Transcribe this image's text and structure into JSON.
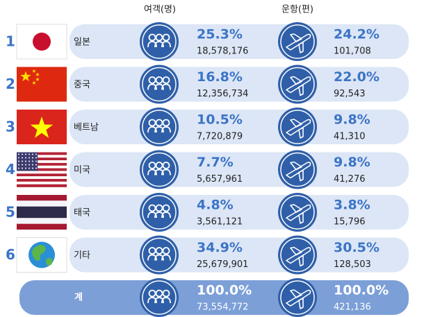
{
  "header": {
    "passengers": "여객(명)",
    "flights": "운항(편)"
  },
  "rows": [
    {
      "rank": "1",
      "country": "일본",
      "passenger_share": "25.3%",
      "passengers": "18,578,176",
      "flight_share": "24.2%",
      "flights": "101,708"
    },
    {
      "rank": "2",
      "country": "중국",
      "passenger_share": "16.8%",
      "passengers": "12,356,734",
      "flight_share": "22.0%",
      "flights": "92,543"
    },
    {
      "rank": "3",
      "country": "베트남",
      "passenger_share": "10.5%",
      "passengers": "7,720,879",
      "flight_share": "9.8%",
      "flights": "41,310"
    },
    {
      "rank": "4",
      "country": "미국",
      "passenger_share": "7.7%",
      "passengers": "5,657,961",
      "flight_share": "9.8%",
      "flights": "41,276"
    },
    {
      "rank": "5",
      "country": "태국",
      "passenger_share": "4.8%",
      "passengers": "3,561,121",
      "flight_share": "3.8%",
      "flights": "15,796"
    },
    {
      "rank": "6",
      "country": "기타",
      "passenger_share": "34.9%",
      "passengers": "25,679,901",
      "flight_share": "30.5%",
      "flights": "128,503"
    }
  ],
  "total": {
    "label": "계",
    "passenger_share": "100.0%",
    "passengers": "73,554,772",
    "flight_share": "100.0%",
    "flights": "421,136"
  }
}
